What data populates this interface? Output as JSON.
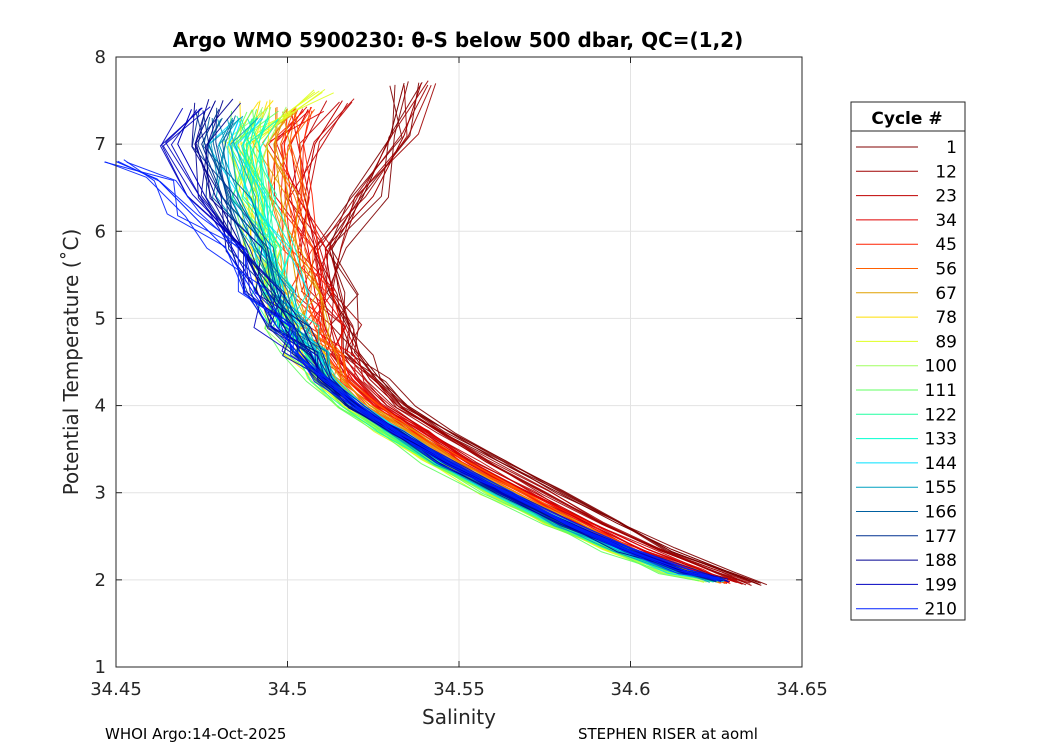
{
  "chart_data": {
    "type": "line",
    "title": "Argo WMO 5900230: θ-S below 500 dbar,  QC=(1,2)",
    "xlabel": "Salinity",
    "ylabel": "Potential Temperature (˚C)",
    "xlim": [
      34.45,
      34.65
    ],
    "ylim": [
      1,
      8
    ],
    "xticks": [
      34.45,
      34.5,
      34.55,
      34.6,
      34.65
    ],
    "xtick_labels": [
      "34.45",
      "34.5",
      "34.55",
      "34.6",
      "34.65"
    ],
    "yticks": [
      1,
      2,
      3,
      4,
      5,
      6,
      7,
      8
    ],
    "ytick_labels": [
      "1",
      "2",
      "3",
      "4",
      "5",
      "6",
      "7",
      "8"
    ],
    "grid": true,
    "legend_title": "Cycle #",
    "legend_position": "right",
    "legend": [
      {
        "label": "1",
        "color": "#800000"
      },
      {
        "label": "12",
        "color": "#9f0000"
      },
      {
        "label": "23",
        "color": "#bf0000"
      },
      {
        "label": "34",
        "color": "#df0000"
      },
      {
        "label": "45",
        "color": "#ff2000"
      },
      {
        "label": "56",
        "color": "#ff6000"
      },
      {
        "label": "67",
        "color": "#e0a000"
      },
      {
        "label": "78",
        "color": "#ffdf00"
      },
      {
        "label": "89",
        "color": "#dfff20"
      },
      {
        "label": "100",
        "color": "#a0ff60"
      },
      {
        "label": "111",
        "color": "#60ff60"
      },
      {
        "label": "122",
        "color": "#20ffa0"
      },
      {
        "label": "133",
        "color": "#00ffd0"
      },
      {
        "label": "144",
        "color": "#00e0ff"
      },
      {
        "label": "155",
        "color": "#00a0c0"
      },
      {
        "label": "166",
        "color": "#0060a0"
      },
      {
        "label": "177",
        "color": "#003090"
      },
      {
        "label": "188",
        "color": "#000090"
      },
      {
        "label": "199",
        "color": "#0000c0"
      },
      {
        "label": "210",
        "color": "#0020ff"
      }
    ],
    "series": [
      {
        "name": "1",
        "color": "#800000",
        "s": [
          34.638,
          34.628,
          34.612,
          34.596,
          34.579,
          34.562,
          34.547,
          34.535,
          34.527,
          34.521,
          34.518,
          34.515,
          34.513,
          34.522,
          34.53,
          34.534
        ],
        "t": [
          1.96,
          2.1,
          2.35,
          2.65,
          3.0,
          3.35,
          3.7,
          4.0,
          4.3,
          4.6,
          4.9,
          5.3,
          5.8,
          6.4,
          7.1,
          7.7
        ]
      },
      {
        "name": "12",
        "color": "#9f0000",
        "s": [
          34.634,
          34.624,
          34.608,
          34.592,
          34.575,
          34.558,
          34.544,
          34.532,
          34.524,
          34.519,
          34.516,
          34.513,
          34.511,
          34.525,
          34.534,
          34.539
        ],
        "t": [
          1.96,
          2.1,
          2.35,
          2.65,
          3.0,
          3.35,
          3.7,
          4.0,
          4.3,
          4.6,
          4.9,
          5.3,
          5.8,
          6.4,
          7.1,
          7.7
        ]
      },
      {
        "name": "23",
        "color": "#bf0000",
        "s": [
          34.631,
          34.621,
          34.605,
          34.589,
          34.572,
          34.555,
          34.541,
          34.529,
          34.521,
          34.516,
          34.513,
          34.51,
          34.508,
          34.505,
          34.508,
          34.516
        ],
        "t": [
          1.97,
          2.1,
          2.35,
          2.65,
          3.0,
          3.35,
          3.7,
          4.0,
          4.3,
          4.6,
          4.9,
          5.3,
          5.8,
          6.4,
          7.0,
          7.5
        ]
      },
      {
        "name": "34",
        "color": "#df0000",
        "s": [
          34.629,
          34.619,
          34.603,
          34.587,
          34.57,
          34.553,
          34.539,
          34.527,
          34.519,
          34.514,
          34.511,
          34.508,
          34.506,
          34.503,
          34.501,
          34.506
        ],
        "t": [
          1.98,
          2.1,
          2.35,
          2.65,
          3.0,
          3.35,
          3.7,
          4.0,
          4.3,
          4.6,
          4.9,
          5.3,
          5.8,
          6.4,
          7.0,
          7.4
        ]
      },
      {
        "name": "45",
        "color": "#ff2000",
        "s": [
          34.627,
          34.617,
          34.601,
          34.585,
          34.568,
          34.551,
          34.537,
          34.525,
          34.517,
          34.512,
          34.509,
          34.506,
          34.504,
          34.501,
          34.499,
          34.503
        ],
        "t": [
          1.98,
          2.1,
          2.35,
          2.65,
          3.0,
          3.35,
          3.7,
          4.0,
          4.3,
          4.6,
          4.9,
          5.3,
          5.8,
          6.4,
          7.0,
          7.4
        ]
      },
      {
        "name": "56",
        "color": "#ff6000",
        "s": [
          34.626,
          34.616,
          34.6,
          34.584,
          34.567,
          34.55,
          34.536,
          34.524,
          34.516,
          34.511,
          34.508,
          34.505,
          34.503,
          34.5,
          34.498,
          34.502
        ],
        "t": [
          1.99,
          2.1,
          2.35,
          2.65,
          3.0,
          3.35,
          3.7,
          4.0,
          4.3,
          4.6,
          4.9,
          5.3,
          5.8,
          6.4,
          7.0,
          7.4
        ]
      },
      {
        "name": "67",
        "color": "#e0a000",
        "s": [
          34.624,
          34.614,
          34.598,
          34.582,
          34.565,
          34.548,
          34.534,
          34.522,
          34.514,
          34.509,
          34.506,
          34.503,
          34.501,
          34.498,
          34.496,
          34.5
        ],
        "t": [
          1.99,
          2.1,
          2.35,
          2.65,
          3.0,
          3.35,
          3.7,
          4.0,
          4.3,
          4.6,
          4.9,
          5.3,
          5.8,
          6.4,
          7.0,
          7.4
        ]
      },
      {
        "name": "78",
        "color": "#ffdf00",
        "s": [
          34.623,
          34.612,
          34.595,
          34.578,
          34.56,
          34.543,
          34.529,
          34.518,
          34.51,
          34.505,
          34.501,
          34.497,
          34.494,
          34.491,
          34.489,
          34.492
        ],
        "t": [
          2.0,
          2.1,
          2.35,
          2.65,
          3.0,
          3.35,
          3.7,
          4.0,
          4.3,
          4.6,
          4.9,
          5.3,
          5.8,
          6.4,
          7.0,
          7.5
        ]
      },
      {
        "name": "89",
        "color": "#dfff20",
        "s": [
          34.622,
          34.611,
          34.594,
          34.577,
          34.559,
          34.542,
          34.528,
          34.517,
          34.509,
          34.504,
          34.5,
          34.496,
          34.493,
          34.49,
          34.488,
          34.508
        ],
        "t": [
          2.0,
          2.1,
          2.35,
          2.65,
          3.0,
          3.35,
          3.7,
          4.0,
          4.3,
          4.6,
          4.9,
          5.3,
          5.8,
          6.4,
          7.0,
          7.6
        ]
      },
      {
        "name": "100",
        "color": "#a0ff60",
        "s": [
          34.622,
          34.611,
          34.594,
          34.577,
          34.559,
          34.542,
          34.528,
          34.517,
          34.509,
          34.504,
          34.5,
          34.496,
          34.493,
          34.49,
          34.489,
          34.494
        ],
        "t": [
          2.0,
          2.1,
          2.35,
          2.65,
          3.0,
          3.35,
          3.7,
          4.0,
          4.3,
          4.6,
          4.9,
          5.3,
          5.8,
          6.4,
          7.0,
          7.4
        ]
      },
      {
        "name": "111",
        "color": "#60ff60",
        "s": [
          34.622,
          34.611,
          34.594,
          34.577,
          34.559,
          34.542,
          34.528,
          34.517,
          34.509,
          34.504,
          34.5,
          34.496,
          34.493,
          34.49,
          34.488,
          34.491
        ],
        "t": [
          2.0,
          2.1,
          2.35,
          2.65,
          3.0,
          3.35,
          3.7,
          4.0,
          4.3,
          4.6,
          4.9,
          5.3,
          5.8,
          6.4,
          7.0,
          7.4
        ]
      },
      {
        "name": "122",
        "color": "#20ffa0",
        "s": [
          34.623,
          34.612,
          34.595,
          34.578,
          34.56,
          34.543,
          34.529,
          34.518,
          34.51,
          34.505,
          34.501,
          34.497,
          34.494,
          34.49,
          34.487,
          34.49
        ],
        "t": [
          2.0,
          2.1,
          2.35,
          2.65,
          3.0,
          3.35,
          3.7,
          4.0,
          4.3,
          4.6,
          4.9,
          5.3,
          5.8,
          6.4,
          7.0,
          7.3
        ]
      },
      {
        "name": "133",
        "color": "#00ffd0",
        "s": [
          34.624,
          34.613,
          34.596,
          34.579,
          34.562,
          34.545,
          34.531,
          34.52,
          34.512,
          34.507,
          34.503,
          34.499,
          34.496,
          34.492,
          34.489,
          34.491
        ],
        "t": [
          2.0,
          2.1,
          2.35,
          2.65,
          3.0,
          3.35,
          3.7,
          4.0,
          4.3,
          4.6,
          4.9,
          5.3,
          5.8,
          6.4,
          7.0,
          7.3
        ]
      },
      {
        "name": "144",
        "color": "#00e0ff",
        "s": [
          34.625,
          34.614,
          34.597,
          34.58,
          34.562,
          34.545,
          34.531,
          34.52,
          34.512,
          34.507,
          34.503,
          34.499,
          34.495,
          34.489,
          34.483,
          34.486
        ],
        "t": [
          2.0,
          2.1,
          2.35,
          2.65,
          3.0,
          3.35,
          3.7,
          4.0,
          4.3,
          4.6,
          4.9,
          5.3,
          5.8,
          6.4,
          7.0,
          7.3
        ]
      },
      {
        "name": "155",
        "color": "#00a0c0",
        "s": [
          34.625,
          34.614,
          34.597,
          34.58,
          34.562,
          34.545,
          34.531,
          34.52,
          34.512,
          34.506,
          34.502,
          34.497,
          34.493,
          34.486,
          34.48,
          34.484
        ],
        "t": [
          2.0,
          2.1,
          2.35,
          2.65,
          3.0,
          3.35,
          3.7,
          4.0,
          4.3,
          4.6,
          4.9,
          5.3,
          5.8,
          6.4,
          7.0,
          7.3
        ]
      },
      {
        "name": "166",
        "color": "#0060a0",
        "s": [
          34.626,
          34.615,
          34.598,
          34.581,
          34.563,
          34.546,
          34.532,
          34.521,
          34.512,
          34.506,
          34.501,
          34.496,
          34.491,
          34.483,
          34.477,
          34.481
        ],
        "t": [
          2.0,
          2.1,
          2.35,
          2.65,
          3.0,
          3.35,
          3.7,
          4.0,
          4.3,
          4.6,
          4.9,
          5.3,
          5.8,
          6.4,
          7.0,
          7.3
        ]
      },
      {
        "name": "177",
        "color": "#003090",
        "s": [
          34.626,
          34.615,
          34.598,
          34.581,
          34.563,
          34.546,
          34.531,
          34.519,
          34.51,
          34.504,
          34.499,
          34.494,
          34.489,
          34.481,
          34.475,
          34.48
        ],
        "t": [
          2.0,
          2.1,
          2.35,
          2.65,
          3.0,
          3.35,
          3.7,
          4.0,
          4.3,
          4.6,
          4.9,
          5.3,
          5.8,
          6.4,
          7.0,
          7.4
        ]
      },
      {
        "name": "188",
        "color": "#000090",
        "s": [
          34.626,
          34.615,
          34.598,
          34.581,
          34.563,
          34.546,
          34.531,
          34.519,
          34.51,
          34.504,
          34.499,
          34.493,
          34.487,
          34.479,
          34.473,
          34.479
        ],
        "t": [
          2.0,
          2.1,
          2.35,
          2.65,
          3.0,
          3.35,
          3.7,
          4.0,
          4.3,
          4.6,
          4.9,
          5.3,
          5.8,
          6.4,
          7.0,
          7.5
        ]
      },
      {
        "name": "199",
        "color": "#0000c0",
        "s": [
          34.627,
          34.616,
          34.599,
          34.582,
          34.564,
          34.547,
          34.532,
          34.52,
          34.51,
          34.503,
          34.497,
          34.491,
          34.484,
          34.476,
          34.468,
          34.472
        ],
        "t": [
          2.0,
          2.1,
          2.35,
          2.65,
          3.0,
          3.35,
          3.7,
          4.0,
          4.3,
          4.6,
          4.9,
          5.3,
          5.8,
          6.4,
          7.0,
          7.4
        ]
      },
      {
        "name": "210",
        "color": "#0020ff",
        "s": [
          34.627,
          34.616,
          34.599,
          34.582,
          34.564,
          34.547,
          34.532,
          34.52,
          34.51,
          34.503,
          34.497,
          34.49,
          34.482,
          34.472,
          34.462,
          34.45
        ],
        "t": [
          2.0,
          2.1,
          2.35,
          2.65,
          3.0,
          3.35,
          3.7,
          4.0,
          4.3,
          4.6,
          4.9,
          5.3,
          5.8,
          6.2,
          6.6,
          6.8
        ]
      }
    ]
  },
  "footer": {
    "left": "WHOI Argo:14-Oct-2025",
    "right": "STEPHEN RISER at aoml"
  }
}
